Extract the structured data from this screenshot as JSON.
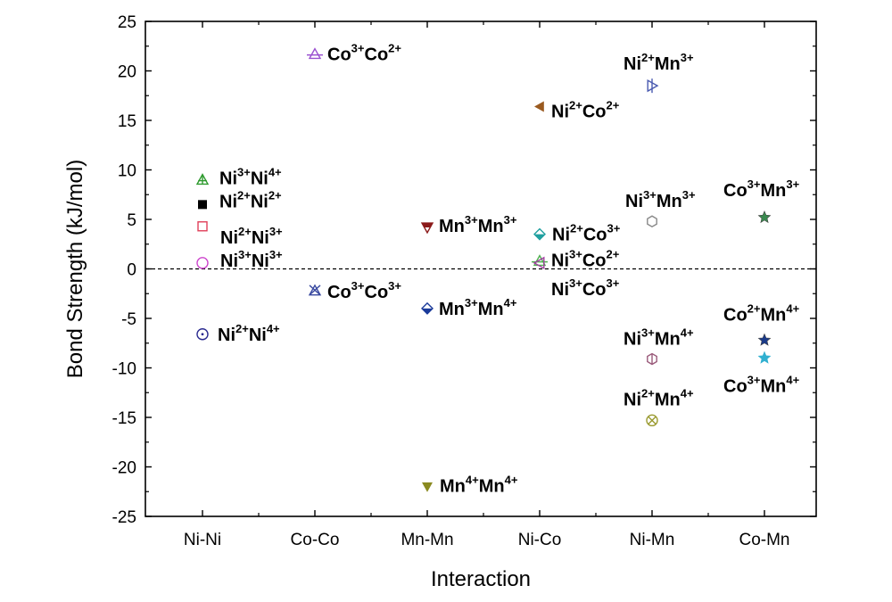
{
  "chart_data": {
    "type": "scatter",
    "xlabel": "Interaction",
    "ylabel": "Bond Strength (kJ/mol)",
    "categories": [
      "Ni-Ni",
      "Co-Co",
      "Mn-Mn",
      "Ni-Co",
      "Ni-Mn",
      "Co-Mn"
    ],
    "ylim": [
      -25,
      25
    ],
    "yticks": [
      -25,
      -20,
      -15,
      -10,
      -5,
      0,
      5,
      10,
      15,
      20,
      25
    ],
    "reference_line": {
      "y": 0,
      "style": "dashed"
    },
    "grid": false,
    "points": [
      {
        "category": "Ni-Ni",
        "y": 9.0,
        "label": [
          "Ni",
          "3+",
          "Ni",
          "4+"
        ],
        "marker": "triangle-cross",
        "color": "#2e9a2e"
      },
      {
        "category": "Ni-Ni",
        "y": 6.5,
        "label": [
          "Ni",
          "2+",
          "Ni",
          "2+"
        ],
        "marker": "square-filled",
        "color": "#000000"
      },
      {
        "category": "Ni-Ni",
        "y": 4.3,
        "label": [
          "Ni",
          "2+",
          "Ni",
          "3+"
        ],
        "marker": "square-open",
        "color": "#e0405a"
      },
      {
        "category": "Ni-Ni",
        "y": 0.6,
        "label": [
          "Ni",
          "3+",
          "Ni",
          "3+"
        ],
        "marker": "circle-open",
        "color": "#cc44cc"
      },
      {
        "category": "Ni-Ni",
        "y": -6.6,
        "label": [
          "Ni",
          "2+",
          "Ni",
          "4+"
        ],
        "marker": "circle-dot",
        "color": "#2a2a90"
      },
      {
        "category": "Co-Co",
        "y": 21.7,
        "label": [
          "Co",
          "3+",
          "Co",
          "2+"
        ],
        "marker": "triangle-line",
        "color": "#9a50d0"
      },
      {
        "category": "Co-Co",
        "y": -2.2,
        "label": [
          "Co",
          "3+",
          "Co",
          "3+"
        ],
        "marker": "triangle-x",
        "color": "#3a4aa0"
      },
      {
        "category": "Mn-Mn",
        "y": 4.2,
        "label": [
          "Mn",
          "3+",
          "Mn",
          "3+"
        ],
        "marker": "triangle-down-half",
        "color": "#8b1a1a"
      },
      {
        "category": "Mn-Mn",
        "y": -4.0,
        "label": [
          "Mn",
          "3+",
          "Mn",
          "4+"
        ],
        "marker": "diamond-half",
        "color": "#1a3a9a"
      },
      {
        "category": "Mn-Mn",
        "y": -22.0,
        "label": [
          "Mn",
          "4+",
          "Mn",
          "4+"
        ],
        "marker": "triangle-down-filled",
        "color": "#8a8a20"
      },
      {
        "category": "Ni-Co",
        "y": 16.4,
        "label": [
          "Ni",
          "2+",
          "Co",
          "2+"
        ],
        "marker": "triangle-left-filled",
        "color": "#9a5a20"
      },
      {
        "category": "Ni-Co",
        "y": 3.5,
        "label": [
          "Ni",
          "2+",
          "Co",
          "3+"
        ],
        "marker": "diamond-half",
        "color": "#20a0a0"
      },
      {
        "category": "Ni-Co",
        "y": 0.8,
        "label": [
          "Ni",
          "3+",
          "Co",
          "2+"
        ],
        "marker": "triangle-line",
        "color": "#50b050"
      },
      {
        "category": "Ni-Co",
        "y": 0.6,
        "label": [
          "Ni",
          "3+",
          "Co",
          "3+"
        ],
        "marker": "triangle-left-open",
        "color": "#a040a0"
      },
      {
        "category": "Ni-Mn",
        "y": 18.5,
        "label": [
          "Ni",
          "2+",
          "Mn",
          "3+"
        ],
        "marker": "triangle-right-line",
        "color": "#4a5ab0"
      },
      {
        "category": "Ni-Mn",
        "y": 4.8,
        "label": [
          "Ni",
          "3+",
          "Mn",
          "3+"
        ],
        "marker": "hexagon-open",
        "color": "#888888"
      },
      {
        "category": "Ni-Mn",
        "y": -9.1,
        "label": [
          "Ni",
          "3+",
          "Mn",
          "4+"
        ],
        "marker": "hexagon-line",
        "color": "#9a5a7a"
      },
      {
        "category": "Ni-Mn",
        "y": -15.3,
        "label": [
          "Ni",
          "2+",
          "Mn",
          "4+"
        ],
        "marker": "circle-x",
        "color": "#9a9a30"
      },
      {
        "category": "Co-Mn",
        "y": 5.2,
        "label": [
          "Co",
          "3+",
          "Mn",
          "3+"
        ],
        "marker": "star-filled",
        "color": "#3a8a50"
      },
      {
        "category": "Co-Mn",
        "y": -7.2,
        "label": [
          "Co",
          "2+",
          "Mn",
          "4+"
        ],
        "marker": "star-filled",
        "color": "#1a3a8a"
      },
      {
        "category": "Co-Mn",
        "y": -9.0,
        "label": [
          "Co",
          "3+",
          "Mn",
          "4+"
        ],
        "marker": "star-line",
        "color": "#30b0d0"
      }
    ]
  }
}
